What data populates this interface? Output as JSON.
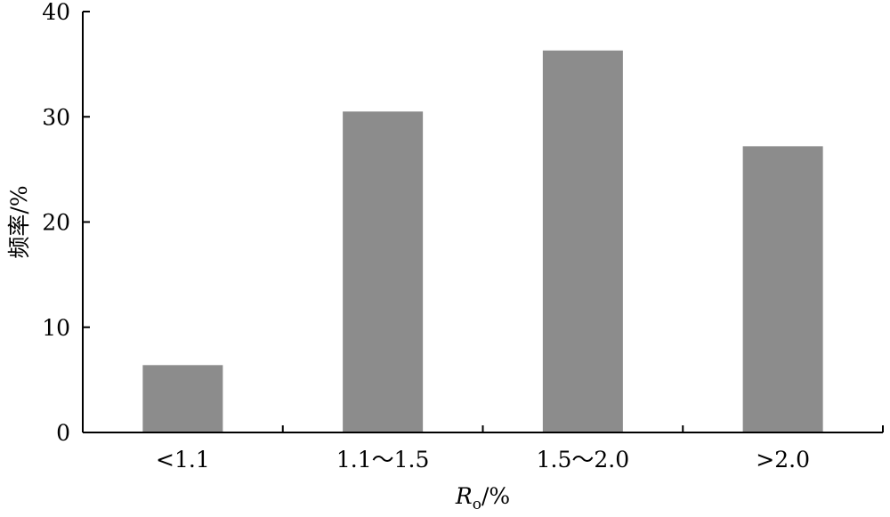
{
  "chart_data": {
    "type": "bar",
    "categories": [
      "<1.1",
      "1.1～1.5",
      "1.5～2.0",
      ">2.0"
    ],
    "values": [
      6.4,
      30.5,
      36.3,
      27.2
    ],
    "ylabel": "频率/%",
    "xlabel_main": "R",
    "xlabel_sub": "o",
    "xlabel_unit": "/%",
    "ylim": [
      0,
      40
    ],
    "yticks": [
      0,
      10,
      20,
      30,
      40
    ],
    "yticklabels": [
      "0",
      "10",
      "20",
      "30",
      "40"
    ],
    "grid": false,
    "legend": "none",
    "bar_color": "#8c8c8c",
    "axis_color": "#000000"
  }
}
